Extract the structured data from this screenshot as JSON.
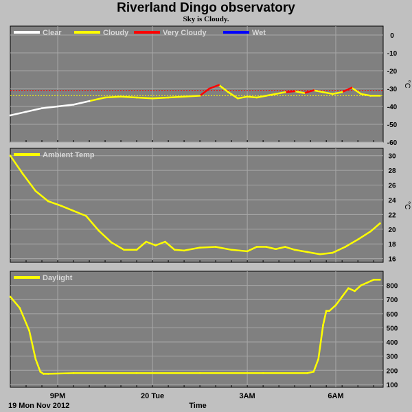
{
  "title": "Riverland Dingo observatory",
  "subtitle": "Sky is Cloudy.",
  "colors": {
    "clear": "#ffffff",
    "cloudy": "#ffff00",
    "very_cloudy": "#ff0000",
    "wet": "#0000ff",
    "panel_bg": "#808080",
    "grid": "#a8a8a8"
  },
  "x_axis": {
    "date_label": "19 Mon Nov 2012",
    "axis_title": "Time",
    "ticks": [
      "9PM",
      "20 Tue",
      "3AM",
      "6AM"
    ]
  },
  "chart_data": [
    {
      "type": "line",
      "unit": "°C",
      "ylim": [
        -60,
        5
      ],
      "yticks": [
        0,
        -10,
        -20,
        -30,
        -40,
        -50,
        -60
      ],
      "legend": [
        {
          "name": "Clear",
          "color": "#ffffff"
        },
        {
          "name": "Cloudy",
          "color": "#ffff00"
        },
        {
          "name": "Very Cloudy",
          "color": "#ff0000"
        },
        {
          "name": "Wet",
          "color": "#0000ff"
        }
      ],
      "thresholds": [
        {
          "value": -31,
          "color": "#ff0000"
        },
        {
          "value": -34,
          "color": "#ffff00"
        }
      ],
      "x_hours": [
        0,
        0.5,
        1,
        1.5,
        2,
        2.5,
        3,
        3.5,
        4,
        4.5,
        5,
        5.5,
        6,
        6.3,
        6.6,
        6.9,
        7.2,
        7.5,
        7.8,
        8.1,
        8.4,
        8.7,
        9,
        9.3,
        9.6,
        9.9,
        10.2,
        10.5,
        10.8,
        11.1,
        11.4,
        11.7
      ],
      "values": [
        -45,
        -43,
        -41,
        -40,
        -39,
        -37,
        -35,
        -34.5,
        -35,
        -35.5,
        -35,
        -34.5,
        -34,
        -30,
        -28,
        -32,
        -35.5,
        -34.5,
        -35,
        -34,
        -33,
        -32,
        -31.5,
        -32.5,
        -31,
        -32,
        -33,
        -32,
        -29.5,
        -33,
        -34,
        -34
      ],
      "series_colors": [
        "#ffffff",
        "#ffffff",
        "#ffffff",
        "#ffffff",
        "#ffffff",
        "#ffffff",
        "#ffff00",
        "#ffff00",
        "#ffff00",
        "#ffff00",
        "#ffff00",
        "#ffff00",
        "#ffff00",
        "#ff0000",
        "#ff0000",
        "#ffff00",
        "#ffff00",
        "#ffff00",
        "#ffff00",
        "#ffff00",
        "#ffff00",
        "#ffff00",
        "#ff0000",
        "#ffff00",
        "#ff0000",
        "#ffff00",
        "#ffff00",
        "#ffff00",
        "#ff0000",
        "#ffff00",
        "#ffff00",
        "#ffff00"
      ]
    },
    {
      "type": "line",
      "unit": "°C",
      "ylim": [
        15.5,
        31
      ],
      "yticks": [
        16,
        18,
        20,
        22,
        24,
        26,
        28,
        30
      ],
      "legend": [
        {
          "name": "Ambient Temp",
          "color": "#ffff00"
        }
      ],
      "x_hours": [
        0,
        0.4,
        0.8,
        1.2,
        1.6,
        2.0,
        2.4,
        2.8,
        3.2,
        3.6,
        4.0,
        4.3,
        4.6,
        4.9,
        5.2,
        5.5,
        6.0,
        6.5,
        7.0,
        7.5,
        7.8,
        8.1,
        8.4,
        8.7,
        9.0,
        9.4,
        9.8,
        10.2,
        10.6,
        11.0,
        11.4,
        11.7
      ],
      "values": [
        30,
        27.5,
        25.2,
        23.8,
        23.2,
        22.5,
        21.8,
        19.8,
        18.2,
        17.2,
        17.2,
        18.3,
        17.8,
        18.3,
        17.2,
        17.1,
        17.5,
        17.6,
        17.2,
        17.0,
        17.6,
        17.6,
        17.3,
        17.6,
        17.2,
        16.9,
        16.6,
        16.8,
        17.6,
        18.6,
        19.7,
        20.8
      ]
    },
    {
      "type": "line",
      "unit": "",
      "ylim": [
        80,
        900
      ],
      "yticks": [
        100,
        200,
        300,
        400,
        500,
        600,
        700,
        800
      ],
      "legend": [
        {
          "name": "Daylight",
          "color": "#ffff00"
        }
      ],
      "x_hours": [
        0,
        0.3,
        0.6,
        0.8,
        0.95,
        1.05,
        1.2,
        2,
        4,
        6,
        8,
        9.4,
        9.6,
        9.75,
        9.9,
        10.0,
        10.1,
        10.3,
        10.5,
        10.7,
        10.9,
        11.1,
        11.3,
        11.5,
        11.7
      ],
      "values": [
        720,
        640,
        480,
        280,
        190,
        175,
        175,
        180,
        180,
        180,
        180,
        180,
        190,
        280,
        520,
        620,
        620,
        660,
        720,
        780,
        760,
        800,
        820,
        840,
        840
      ]
    }
  ]
}
